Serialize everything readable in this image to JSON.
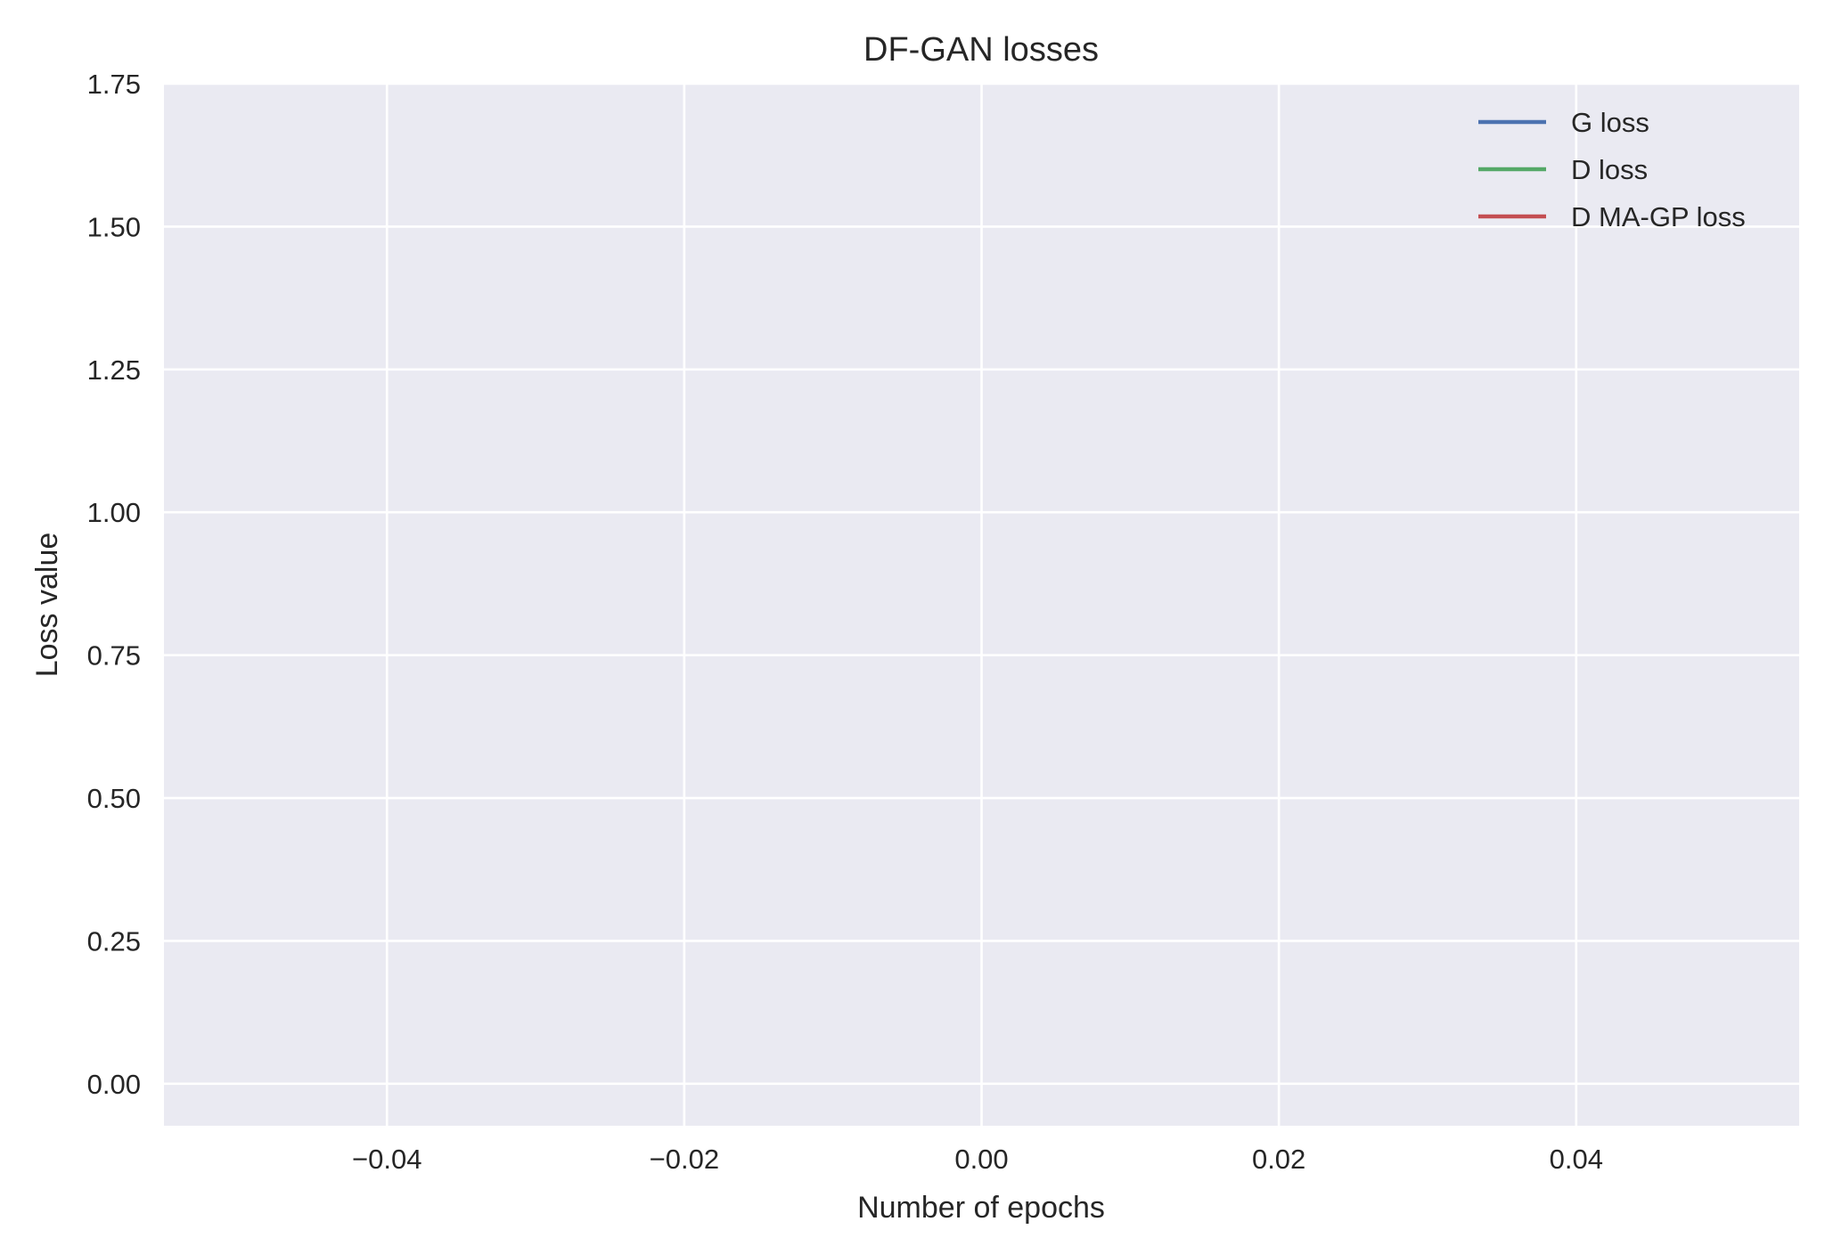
{
  "chart_data": {
    "type": "line",
    "title": "DF-GAN losses",
    "xlabel": "Number of epochs",
    "ylabel": "Loss value",
    "xlim": [
      -0.055,
      0.055
    ],
    "ylim": [
      -0.0735,
      1.75
    ],
    "x_ticks": [
      -0.04,
      -0.02,
      0.0,
      0.02,
      0.04
    ],
    "x_tick_labels": [
      "−0.04",
      "−0.02",
      "0.00",
      "0.02",
      "0.04"
    ],
    "y_ticks": [
      0.0,
      0.25,
      0.5,
      0.75,
      1.0,
      1.25,
      1.5,
      1.75
    ],
    "y_tick_labels": [
      "0.00",
      "0.25",
      "0.50",
      "0.75",
      "1.00",
      "1.25",
      "1.50",
      "1.75"
    ],
    "grid": true,
    "legend_position": "top-right",
    "background": "#eaeaf2",
    "series": [
      {
        "name": "G loss",
        "color": "#4c72b0",
        "x": [],
        "y": []
      },
      {
        "name": "D loss",
        "color": "#55a868",
        "x": [],
        "y": []
      },
      {
        "name": "D MA-GP loss",
        "color": "#c44e52",
        "x": [],
        "y": []
      }
    ]
  }
}
